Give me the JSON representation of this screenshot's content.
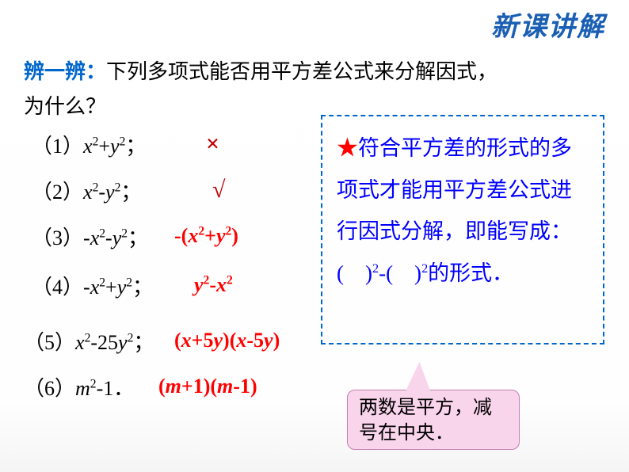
{
  "header": {
    "title": "新课讲解"
  },
  "question": {
    "prefix": "辨一辨：",
    "line1_text": "下列多项式能否用平方差公式来分解因式，",
    "line2_text": "为什么？"
  },
  "items": [
    {
      "num": "（1）",
      "expr_html": "<em>x</em><sup>2</sup>+<em>y</em><sup>2</sup>；",
      "answer_type": "cross",
      "answer": "×"
    },
    {
      "num": "（2）",
      "expr_html": "<em>x</em><sup>2</sup>-<em>y</em><sup>2</sup>；",
      "answer_type": "check",
      "answer": "√"
    },
    {
      "num": "（3）",
      "expr_html": "-<em>x</em><sup>2</sup>-<em>y</em><sup>2</sup>；",
      "answer_type": "expr",
      "answer_html": "-(<em>x</em><sup>2</sup>+<em>y</em><sup>2</sup>)"
    },
    {
      "num": "（4）",
      "expr_html": "-<em>x</em><sup>2</sup>+<em>y</em><sup>2</sup>；",
      "answer_type": "expr",
      "answer_html": "<em>y</em><sup>2</sup>-<em>x</em><sup>2</sup>"
    },
    {
      "num": "（5）",
      "expr_html": "<em>x</em><sup>2</sup>-25<em>y</em><sup>2</sup>；",
      "answer_type": "expr",
      "answer_html": "(<em>x</em>+5<em>y</em>)(<em>x</em>-5<em>y</em>)"
    },
    {
      "num": "（6）",
      "expr_html": "<em>m</em><sup>2</sup>-1．",
      "answer_type": "expr",
      "answer_html": "(<em>m</em>+1)(<em>m</em>-1)"
    }
  ],
  "infobox": {
    "star": "★",
    "text_html": "符合平方差的形式的多项式才能用平方差公式进行因式分解，即能写成：(　)<sup>2</sup>-(　)<sup>2</sup>的形式．"
  },
  "callout": {
    "text": "两数是平方，减号在中央．"
  },
  "colors": {
    "header_color": "#1a5fb4",
    "question_prefix_color": "#0066cc",
    "answer_color": "#ff0000",
    "infobox_border": "#0066cc",
    "infobox_text": "#0000ff",
    "callout_bg": "#f9d5ec",
    "callout_border": "#c080b0"
  }
}
